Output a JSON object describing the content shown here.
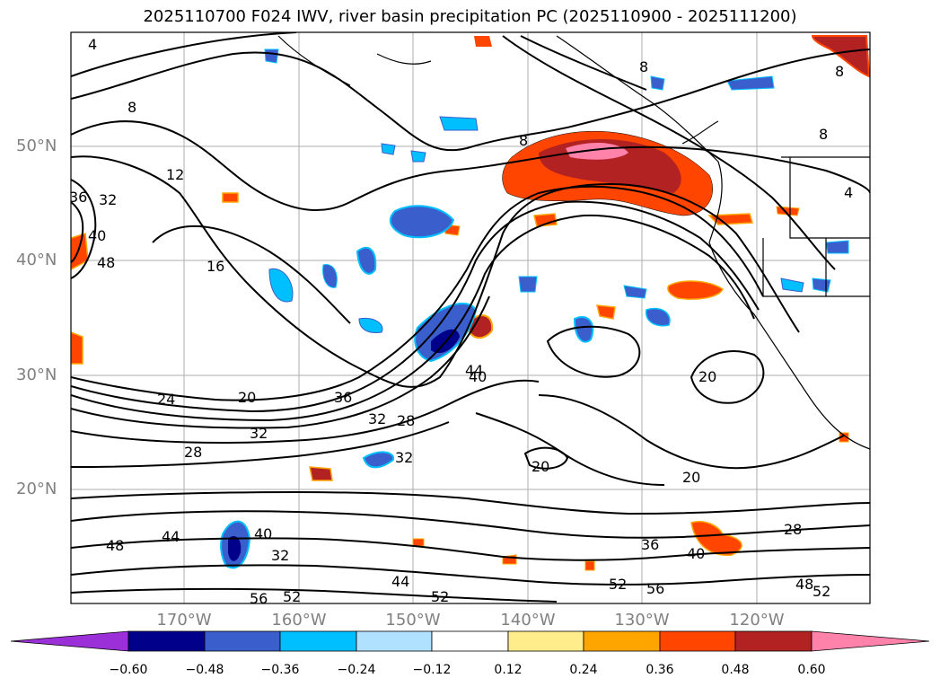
{
  "title": "2025110700 F024 IWV, river basin precipitation PC (2025110900 - 2025111200)",
  "latitude_labels": [
    "50°N",
    "40°N",
    "30°N",
    "20°N"
  ],
  "longitude_labels": [
    "170°W",
    "160°W",
    "150°W",
    "140°W",
    "130°W",
    "120°W"
  ],
  "colorbar": {
    "ticks": [
      "−0.60",
      "−0.48",
      "−0.36",
      "−0.24",
      "−0.12",
      "0.12",
      "0.24",
      "0.36",
      "0.48",
      "0.60"
    ],
    "colors": [
      "#9b30d8",
      "#00008b",
      "#3a5fcd",
      "#00bfff",
      "#b0e2ff",
      "#ffffff",
      "#ffec8b",
      "#ffa500",
      "#ff4500",
      "#b22222",
      "#ff82ab"
    ]
  },
  "contour_labels": [
    "4",
    "8",
    "8",
    "8",
    "12",
    "16",
    "36",
    "32",
    "40",
    "48",
    "8",
    "4",
    "8",
    "24",
    "20",
    "36",
    "32",
    "28",
    "32",
    "28",
    "32",
    "44",
    "40",
    "20",
    "20",
    "20",
    "28",
    "40",
    "36",
    "48",
    "44",
    "40",
    "32",
    "44",
    "52",
    "52",
    "56",
    "48",
    "52",
    "56",
    "52"
  ]
}
